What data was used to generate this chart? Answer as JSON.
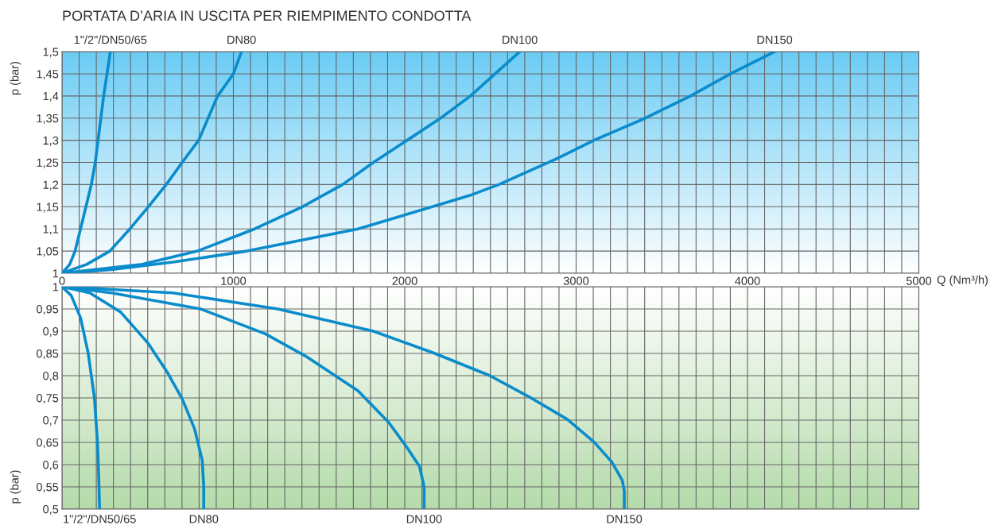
{
  "chart_data": [
    {
      "type": "line",
      "title": "PORTATA D’ARIA IN USCITA PER RIEMPIMENTO CONDOTTA",
      "xlabel": "Q (Nm³/h)",
      "ylabel": "p (bar)",
      "xlim": [
        0,
        5000
      ],
      "ylim": [
        1,
        1.5
      ],
      "xticks": [
        0,
        {
          "value": 100,
          "label": null
        },
        {
          "value": 200,
          "label": null
        },
        {
          "value": 300,
          "label": null
        },
        {
          "value": 400,
          "label": null
        },
        {
          "value": 500,
          "label": null
        },
        {
          "value": 600,
          "label": null
        },
        {
          "value": 700,
          "label": null
        },
        {
          "value": 800,
          "label": null
        },
        {
          "value": 900,
          "label": null
        },
        1000,
        {
          "value": 1100,
          "label": null
        },
        {
          "value": 1200,
          "label": null
        },
        {
          "value": 1300,
          "label": null
        },
        {
          "value": 1400,
          "label": null
        },
        {
          "value": 1500,
          "label": null
        },
        {
          "value": 1600,
          "label": null
        },
        {
          "value": 1700,
          "label": null
        },
        {
          "value": 1800,
          "label": null
        },
        {
          "value": 1900,
          "label": null
        },
        2000,
        {
          "value": 2100,
          "label": null
        },
        {
          "value": 2200,
          "label": null
        },
        {
          "value": 2300,
          "label": null
        },
        {
          "value": 2400,
          "label": null
        },
        {
          "value": 2500,
          "label": null
        },
        {
          "value": 2600,
          "label": null
        },
        {
          "value": 2700,
          "label": null
        },
        {
          "value": 2800,
          "label": null
        },
        {
          "value": 2900,
          "label": null
        },
        3000,
        {
          "value": 3100,
          "label": null
        },
        {
          "value": 3200,
          "label": null
        },
        {
          "value": 3300,
          "label": null
        },
        {
          "value": 3400,
          "label": null
        },
        {
          "value": 3500,
          "label": null
        },
        {
          "value": 3600,
          "label": null
        },
        {
          "value": 3700,
          "label": null
        },
        {
          "value": 3800,
          "label": null
        },
        {
          "value": 3900,
          "label": null
        },
        4000,
        {
          "value": 4100,
          "label": null
        },
        {
          "value": 4200,
          "label": null
        },
        {
          "value": 4300,
          "label": null
        },
        {
          "value": 4400,
          "label": null
        },
        {
          "value": 4500,
          "label": null
        },
        {
          "value": 4600,
          "label": null
        },
        {
          "value": 4700,
          "label": null
        },
        {
          "value": 4800,
          "label": null
        },
        {
          "value": 4900,
          "label": null
        },
        5000
      ],
      "yticks": [
        1,
        {
          "value": 1.05,
          "label": "1,05"
        },
        {
          "value": 1.1,
          "label": "1,1"
        },
        {
          "value": 1.15,
          "label": "1,15"
        },
        {
          "value": 1.2,
          "label": "1,2"
        },
        {
          "value": 1.25,
          "label": "1,25"
        },
        {
          "value": 1.3,
          "label": "1,3"
        },
        {
          "value": 1.35,
          "label": "1,35"
        },
        {
          "value": 1.4,
          "label": "1,4"
        },
        {
          "value": 1.45,
          "label": "1,45"
        },
        {
          "value": 1.5,
          "label": "1,5"
        }
      ],
      "grid": true,
      "legend": false,
      "series": [
        {
          "name": "1\"/2\"/DN50/65",
          "color": "#0a8ccc",
          "x": [
            0,
            45,
            76,
            108,
            171,
            194,
            243,
            282
          ],
          "values": [
            1,
            1.02,
            1.05,
            1.1,
            1.2,
            1.25,
            1.4,
            1.5
          ]
        },
        {
          "name": "DN80",
          "color": "#0a8ccc",
          "x": [
            0,
            144,
            279,
            396,
            504,
            608,
            701,
            797,
            908,
            1000,
            1047
          ],
          "values": [
            1,
            1.02,
            1.05,
            1.1,
            1.15,
            1.2,
            1.25,
            1.3,
            1.4,
            1.45,
            1.5
          ]
        },
        {
          "name": "DN100",
          "color": "#0a8ccc",
          "x": [
            0,
            468,
            791,
            1124,
            1403,
            1637,
            1817,
            2014,
            2209,
            2383,
            2527,
            2671
          ],
          "values": [
            1,
            1.02,
            1.05,
            1.1,
            1.15,
            1.2,
            1.25,
            1.3,
            1.35,
            1.4,
            1.45,
            1.5
          ]
        },
        {
          "name": "DN150",
          "color": "#0a8ccc",
          "x": [
            0,
            288,
            647,
            1079,
            1727,
            2376,
            2549,
            2896,
            3104,
            3404,
            3667,
            3901,
            4158
          ],
          "values": [
            1,
            1.008,
            1.025,
            1.05,
            1.1,
            1.175,
            1.2,
            1.26,
            1.3,
            1.35,
            1.4,
            1.45,
            1.5
          ]
        }
      ]
    },
    {
      "type": "line",
      "ylabel": "p (bar)",
      "xlim": [
        0,
        5000
      ],
      "ylim": [
        0.5,
        1
      ],
      "tick_labels": "y",
      "xticks": [
        0,
        100,
        200,
        300,
        400,
        500,
        600,
        700,
        800,
        900,
        1000,
        1100,
        1200,
        1300,
        1400,
        1500,
        1600,
        1700,
        1800,
        1900,
        2000,
        2100,
        2200,
        2300,
        2400,
        2500,
        2600,
        2700,
        2800,
        2900,
        3000,
        3100,
        3200,
        3300,
        3400,
        3500,
        3600,
        3700,
        3800,
        3900,
        4000,
        4100,
        4200,
        4300,
        4400,
        4500,
        4600,
        4700,
        4800,
        4900,
        5000
      ],
      "yticks": [
        {
          "value": 0.5,
          "label": "0,5"
        },
        {
          "value": 0.55,
          "label": "0,55"
        },
        {
          "value": 0.6,
          "label": "0,6"
        },
        {
          "value": 0.65,
          "label": "0,65"
        },
        {
          "value": 0.7,
          "label": "0,7"
        },
        {
          "value": 0.75,
          "label": "0,75"
        },
        {
          "value": 0.8,
          "label": "0,8"
        },
        {
          "value": 0.85,
          "label": "0,85"
        },
        {
          "value": 0.9,
          "label": "0,9"
        },
        {
          "value": 0.95,
          "label": "0,95"
        },
        1
      ],
      "grid": true,
      "legend": false,
      "series": [
        {
          "name": "1\"/2\"/DN50/65",
          "color": "#0a8ccc",
          "x": [
            0,
            54,
            108,
            153,
            189,
            207,
            216,
            219
          ],
          "values": [
            1,
            0.98,
            0.93,
            0.85,
            0.75,
            0.65,
            0.55,
            0.5
          ]
        },
        {
          "name": "DN80",
          "color": "#0a8ccc",
          "x": [
            0,
            162,
            342,
            504,
            612,
            701,
            773,
            818,
            827,
            827
          ],
          "values": [
            1,
            0.986,
            0.943,
            0.872,
            0.809,
            0.748,
            0.681,
            0.61,
            0.55,
            0.5
          ]
        },
        {
          "name": "DN100",
          "color": "#0a8ccc",
          "x": [
            0,
            288,
            809,
            1187,
            1421,
            1727,
            1906,
            2014,
            2086,
            2113,
            2113
          ],
          "values": [
            1,
            0.986,
            0.95,
            0.894,
            0.844,
            0.766,
            0.695,
            0.638,
            0.596,
            0.55,
            0.5
          ]
        },
        {
          "name": "DN150",
          "color": "#0a8ccc",
          "x": [
            0,
            647,
            1259,
            1817,
            2176,
            2497,
            2723,
            2948,
            3104,
            3208,
            3269,
            3281,
            3281
          ],
          "values": [
            1,
            0.986,
            0.95,
            0.9,
            0.85,
            0.8,
            0.753,
            0.702,
            0.651,
            0.606,
            0.565,
            0.541,
            0.5
          ]
        }
      ]
    }
  ]
}
